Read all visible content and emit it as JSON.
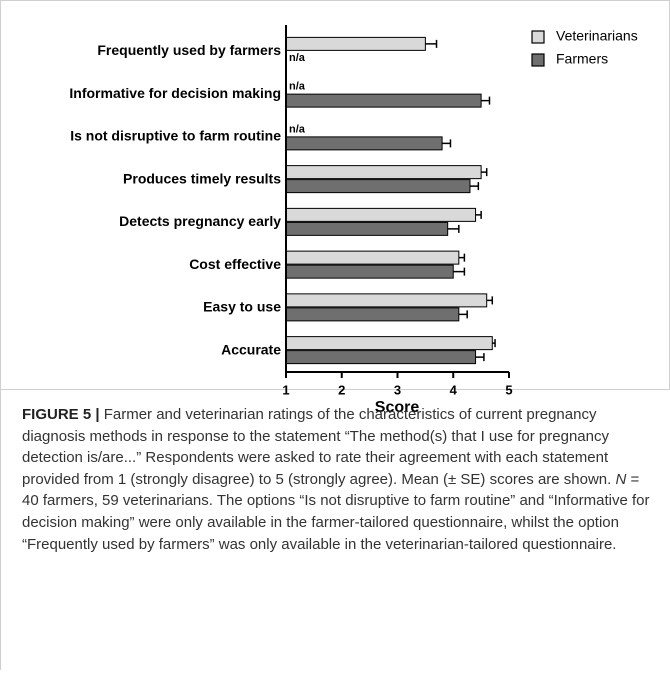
{
  "chart_data": {
    "type": "hbar",
    "categories": [
      "Frequently used by farmers",
      "Informative for decision making",
      "Is not disruptive to farm routine",
      "Produces timely results",
      "Detects pregnancy early",
      "Cost effective",
      "Easy to use",
      "Accurate"
    ],
    "series": [
      {
        "name": "Veterinarians",
        "color": "#d9d9d9",
        "values": [
          3.5,
          null,
          null,
          4.5,
          4.4,
          4.1,
          4.6,
          4.7
        ],
        "errors": [
          0.2,
          null,
          null,
          0.1,
          0.1,
          0.1,
          0.1,
          0.05
        ],
        "value_labels": [
          null,
          "n/a",
          "n/a",
          null,
          null,
          null,
          null,
          null
        ]
      },
      {
        "name": "Farmers",
        "color": "#6f6f6f",
        "values": [
          null,
          4.5,
          3.8,
          4.3,
          3.9,
          4.0,
          4.1,
          4.4
        ],
        "errors": [
          null,
          0.15,
          0.15,
          0.15,
          0.2,
          0.2,
          0.15,
          0.15
        ],
        "value_labels": [
          "n/a",
          null,
          null,
          null,
          null,
          null,
          null,
          null
        ]
      }
    ],
    "xlabel": "Score",
    "xlim": [
      1,
      5
    ],
    "xticks": [
      1,
      2,
      3,
      4,
      5
    ],
    "legend": "top-right",
    "caption_label": "FIGURE 5 |",
    "caption": [
      " Farmer and veterinarian ratings of the characteristics of current pregnancy diagnosis methods in response to the statement “The method(s) that I use for pregnancy detection is/are...” Respondents were asked to rate their agreement with each statement provided from 1 (strongly disagree) to 5 (strongly agree). Mean (± SE) scores are shown. ",
      "N",
      " = 40 farmers, 59 veterinarians. The options “Is not disruptive to farm routine” and “Informative for decision making” were only available in the farmer-tailored questionnaire, whilst the option “Frequently used by farmers” was only available in the veterinarian-tailored questionnaire."
    ]
  }
}
